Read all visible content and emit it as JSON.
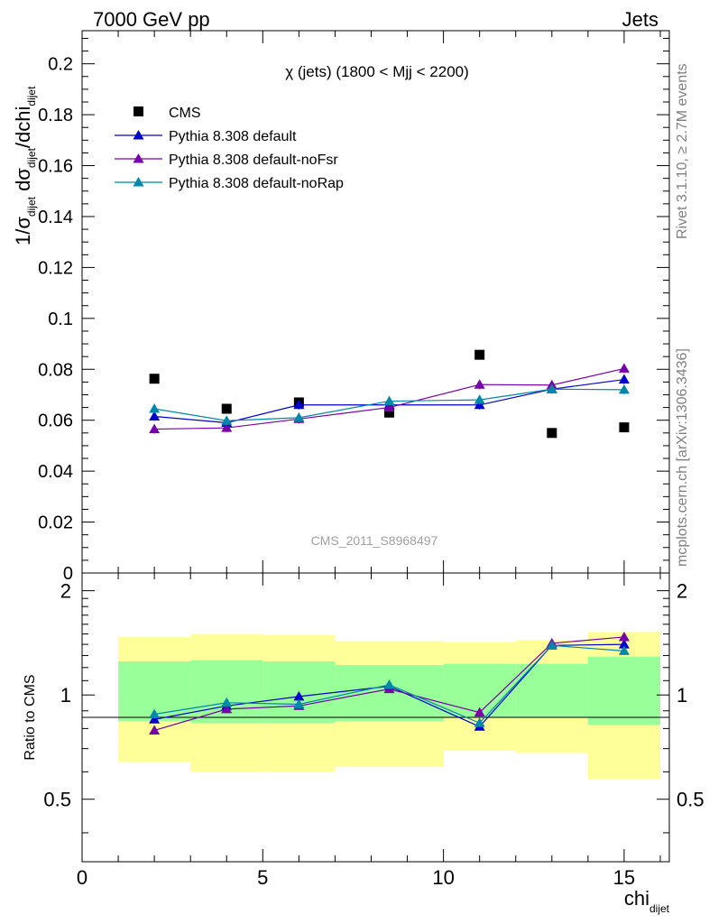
{
  "header": {
    "left": "7000 GeV pp",
    "right": "Jets"
  },
  "side_labels": {
    "rivet": "Rivet 3.1.10, ≥ 2.7M events",
    "mcplots": "mcplots.cern.ch [arXiv:1306.3436]"
  },
  "chart_data": [
    {
      "type": "scatter",
      "title": "χ (jets) (1800 < Mjj < 2200)",
      "watermark": "CMS_2011_S8968497",
      "ylabel": {
        "main": "1/σ",
        "s1": "dijet",
        "mid": " dσ",
        "s2": "dijet",
        "tail": "/dchi",
        "s3": "dijet"
      },
      "xlim": [
        0,
        16.25
      ],
      "ylim": [
        0,
        0.213
      ],
      "yticks": [
        0,
        0.02,
        0.04,
        0.06,
        0.08,
        0.1,
        0.12,
        0.14,
        0.16,
        0.18,
        0.2
      ],
      "ytick_labels": [
        "0",
        "0.02",
        "0.04",
        "0.06",
        "0.08",
        "0.1",
        "0.12",
        "0.14",
        "0.16",
        "0.18",
        "0.2"
      ],
      "legend_position": "top-left",
      "series": [
        {
          "name": "CMS",
          "color": "#000000",
          "marker": "square",
          "x": [
            2,
            4,
            6,
            8.5,
            11,
            13,
            15
          ],
          "y": [
            0.0763,
            0.0645,
            0.067,
            0.063,
            0.0857,
            0.055,
            0.0572
          ]
        },
        {
          "name": "Pythia 8.308 default",
          "color": "#0000cc",
          "marker": "triangle",
          "x": [
            2,
            4,
            6,
            8.5,
            11,
            13,
            15
          ],
          "y": [
            0.0615,
            0.059,
            0.066,
            0.066,
            0.066,
            0.0722,
            0.076
          ]
        },
        {
          "name": "Pythia 8.308 default-noFsr",
          "color": "#7700aa",
          "marker": "triangle",
          "x": [
            2,
            4,
            6,
            8.5,
            11,
            13,
            15
          ],
          "y": [
            0.0565,
            0.057,
            0.0605,
            0.065,
            0.074,
            0.0738,
            0.0803
          ]
        },
        {
          "name": "Pythia 8.308 default-noRap",
          "color": "#0088aa",
          "marker": "triangle",
          "x": [
            2,
            4,
            6,
            8.5,
            11,
            13,
            15
          ],
          "y": [
            0.0645,
            0.0598,
            0.061,
            0.0675,
            0.068,
            0.0722,
            0.072
          ]
        }
      ]
    },
    {
      "type": "line",
      "ylabel": "Ratio to CMS",
      "xlabel": {
        "main": "chi",
        "sub": "dijet"
      },
      "xlim": [
        0,
        16.25
      ],
      "ylim": [
        0.33,
        2.25
      ],
      "xticks": [
        0,
        5,
        10,
        15
      ],
      "xtick_labels": [
        "0",
        "5",
        "10",
        "15"
      ],
      "yticks": [
        0.5,
        1,
        2
      ],
      "ytick_labels": [
        "0.5",
        "1",
        "2"
      ],
      "bands": {
        "edges": [
          1,
          3,
          5,
          7,
          10,
          12,
          14,
          16
        ],
        "yellow_low": [
          0.64,
          0.6,
          0.6,
          0.62,
          0.69,
          0.68,
          0.57,
          0.58
        ],
        "yellow_high": [
          1.47,
          1.5,
          1.49,
          1.43,
          1.42,
          1.44,
          1.52,
          1.52
        ],
        "green_low": [
          0.84,
          0.83,
          0.83,
          0.84,
          0.86,
          0.86,
          0.82,
          0.82
        ],
        "green_high": [
          1.25,
          1.26,
          1.25,
          1.22,
          1.23,
          1.23,
          1.29,
          1.29
        ],
        "yellow_color": "#ffff99",
        "green_color": "#99ff99"
      },
      "series": [
        {
          "name": "Pythia 8.308 default",
          "color": "#0000cc",
          "x": [
            2,
            4,
            6,
            8.5,
            11,
            13,
            15
          ],
          "y": [
            0.85,
            0.93,
            0.99,
            1.06,
            0.81,
            1.39,
            1.4
          ]
        },
        {
          "name": "Pythia 8.308 default-noFsr",
          "color": "#7700aa",
          "x": [
            2,
            4,
            6,
            8.5,
            11,
            13,
            15
          ],
          "y": [
            0.79,
            0.91,
            0.93,
            1.04,
            0.89,
            1.41,
            1.47
          ]
        },
        {
          "name": "Pythia 8.308 default-noRap",
          "color": "#0088aa",
          "x": [
            2,
            4,
            6,
            8.5,
            11,
            13,
            15
          ],
          "y": [
            0.88,
            0.95,
            0.94,
            1.07,
            0.83,
            1.39,
            1.34
          ]
        }
      ]
    }
  ]
}
